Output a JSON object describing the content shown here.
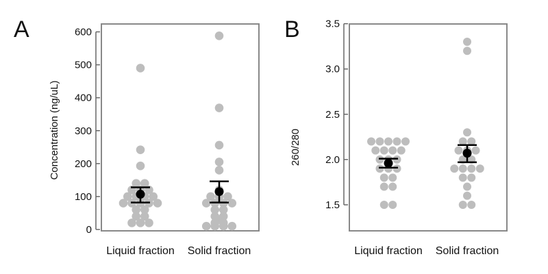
{
  "chart_data": [
    {
      "type": "scatter",
      "panel_label": "A",
      "ylabel": "Concentration (ng/uL)",
      "ylim": [
        0,
        620
      ],
      "yticks": [
        0,
        100,
        200,
        300,
        400,
        500,
        600
      ],
      "categories": [
        "Liquid fraction",
        "Solid fraction"
      ],
      "point_color": "#bdbdbd",
      "summary_color": "#000000",
      "series": [
        {
          "values": [
            490,
            242,
            193,
            140,
            140,
            120,
            120,
            120,
            100,
            100,
            100,
            100,
            80,
            80,
            80,
            80,
            80,
            60,
            60,
            40,
            40,
            20,
            20,
            20
          ],
          "mean": 107,
          "error_low": 82,
          "error_high": 128
        },
        {
          "values": [
            588,
            369,
            256,
            205,
            180,
            120,
            100,
            100,
            100,
            80,
            80,
            80,
            80,
            60,
            60,
            40,
            40,
            30,
            20,
            20,
            10,
            10,
            10,
            10
          ],
          "mean": 115,
          "error_low": 82,
          "error_high": 146
        }
      ]
    },
    {
      "type": "scatter",
      "panel_label": "B",
      "ylabel": "260/280",
      "ylim": [
        1.3,
        3.5
      ],
      "yticks": [
        1.5,
        2.0,
        2.5,
        3.0,
        3.5
      ],
      "ytick_labels": [
        "1.5",
        "2.0",
        "2.5",
        "3.0",
        "3.5"
      ],
      "categories": [
        "Liquid fraction",
        "Solid fraction"
      ],
      "point_color": "#bdbdbd",
      "summary_color": "#000000",
      "series": [
        {
          "values": [
            2.2,
            2.2,
            2.2,
            2.2,
            2.2,
            2.1,
            2.1,
            2.1,
            2.1,
            2.0,
            2.0,
            2.0,
            1.9,
            1.9,
            1.9,
            1.8,
            1.8,
            1.7,
            1.7,
            1.5,
            1.5
          ],
          "mean": 1.96,
          "error_low": 1.91,
          "error_high": 2.01
        },
        {
          "values": [
            3.3,
            3.2,
            2.3,
            2.2,
            2.2,
            2.1,
            2.1,
            2.1,
            2.0,
            2.0,
            1.9,
            1.9,
            1.9,
            1.9,
            1.8,
            1.8,
            1.7,
            1.6,
            1.5,
            1.5
          ],
          "mean": 2.07,
          "error_low": 1.97,
          "error_high": 2.16
        }
      ]
    }
  ]
}
